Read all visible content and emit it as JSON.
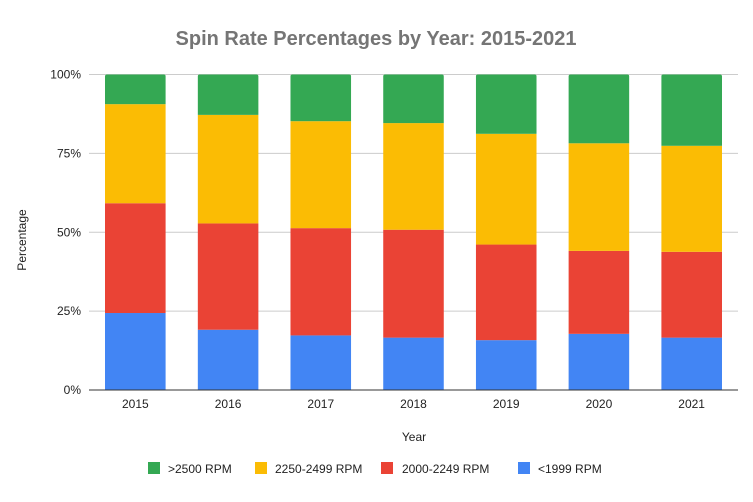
{
  "chart_data": {
    "type": "bar",
    "stacked": true,
    "title": "Spin Rate Percentages by Year: 2015-2021",
    "xlabel": "Year",
    "ylabel": "Percentage",
    "ylim": [
      0,
      100
    ],
    "yticks": [
      "0%",
      "25%",
      "50%",
      "75%",
      "100%"
    ],
    "ytick_values": [
      0,
      25,
      50,
      75,
      100
    ],
    "grid": true,
    "legend_position": "bottom",
    "categories": [
      "2015",
      "2016",
      "2017",
      "2018",
      "2019",
      "2020",
      "2021"
    ],
    "series": [
      {
        "name": "<1999 RPM",
        "color": "#4285f4",
        "values": [
          24.4,
          19.1,
          17.3,
          16.6,
          15.8,
          17.8,
          16.6
        ]
      },
      {
        "name": "2000-2249 RPM",
        "color": "#ea4335",
        "values": [
          34.8,
          33.7,
          34.0,
          34.2,
          30.3,
          26.3,
          27.2
        ]
      },
      {
        "name": "2250-2499 RPM",
        "color": "#fbbc04",
        "values": [
          31.4,
          34.4,
          33.9,
          33.8,
          35.1,
          34.1,
          33.6
        ]
      },
      {
        "name": ">2500 RPM",
        "color": "#34a853",
        "values": [
          9.4,
          12.8,
          14.8,
          15.4,
          18.8,
          21.8,
          22.6
        ]
      }
    ],
    "legend_order": [
      ">2500 RPM",
      "2250-2499 RPM",
      "2000-2249 RPM",
      "<1999 RPM"
    ]
  }
}
